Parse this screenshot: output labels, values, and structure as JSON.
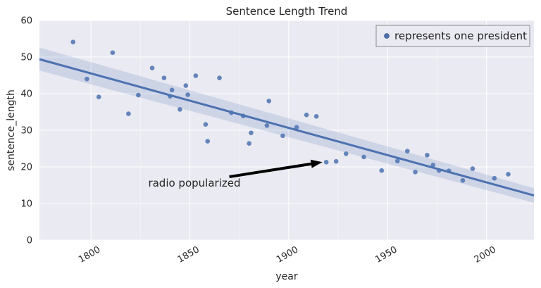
{
  "chart_data": {
    "type": "scatter",
    "title": "Sentence Length Trend",
    "xlabel": "year",
    "ylabel": "sentence_length",
    "xlim": [
      1774,
      2024
    ],
    "ylim": [
      0,
      60
    ],
    "xticks": [
      1800,
      1850,
      1900,
      1950,
      2000
    ],
    "yticks": [
      0,
      10,
      20,
      30,
      40,
      50,
      60
    ],
    "grid": true,
    "legend": {
      "placement": "top-right",
      "label": "represents one president"
    },
    "colors": {
      "point": "#4c72b0",
      "line": "#4c72b0",
      "band": "#4c72b0",
      "background": "#eaeaf2",
      "grid": "#ffffff"
    },
    "points": [
      {
        "x": 1791,
        "y": 54.1
      },
      {
        "x": 1798,
        "y": 44.0
      },
      {
        "x": 1804,
        "y": 39.1
      },
      {
        "x": 1811,
        "y": 51.2
      },
      {
        "x": 1819,
        "y": 34.5
      },
      {
        "x": 1824,
        "y": 39.6
      },
      {
        "x": 1831,
        "y": 47.0
      },
      {
        "x": 1837,
        "y": 44.3
      },
      {
        "x": 1840,
        "y": 39.3
      },
      {
        "x": 1841,
        "y": 41.0
      },
      {
        "x": 1845,
        "y": 35.7
      },
      {
        "x": 1848,
        "y": 42.2
      },
      {
        "x": 1849,
        "y": 39.7
      },
      {
        "x": 1853,
        "y": 44.9
      },
      {
        "x": 1858,
        "y": 31.6
      },
      {
        "x": 1859,
        "y": 27.0
      },
      {
        "x": 1865,
        "y": 44.3
      },
      {
        "x": 1871,
        "y": 34.8
      },
      {
        "x": 1877,
        "y": 33.9
      },
      {
        "x": 1880,
        "y": 26.4
      },
      {
        "x": 1881,
        "y": 29.3
      },
      {
        "x": 1889,
        "y": 31.3
      },
      {
        "x": 1890,
        "y": 38.0
      },
      {
        "x": 1897,
        "y": 28.5
      },
      {
        "x": 1904,
        "y": 30.8
      },
      {
        "x": 1909,
        "y": 34.2
      },
      {
        "x": 1914,
        "y": 33.8
      },
      {
        "x": 1919,
        "y": 21.3
      },
      {
        "x": 1924,
        "y": 21.5
      },
      {
        "x": 1929,
        "y": 23.6
      },
      {
        "x": 1938,
        "y": 22.7
      },
      {
        "x": 1947,
        "y": 19.0
      },
      {
        "x": 1955,
        "y": 21.6
      },
      {
        "x": 1960,
        "y": 24.3
      },
      {
        "x": 1964,
        "y": 18.6
      },
      {
        "x": 1970,
        "y": 23.2
      },
      {
        "x": 1973,
        "y": 20.5
      },
      {
        "x": 1976,
        "y": 19.0
      },
      {
        "x": 1981,
        "y": 18.9
      },
      {
        "x": 1988,
        "y": 16.3
      },
      {
        "x": 1993,
        "y": 19.5
      },
      {
        "x": 2004,
        "y": 16.9
      },
      {
        "x": 2011,
        "y": 18.0
      }
    ],
    "regression": {
      "x": [
        1774,
        2024
      ],
      "y": [
        49.4,
        12.2
      ],
      "band_upper": [
        52.6,
        14.2
      ],
      "band_lower": [
        46.3,
        10.2
      ]
    },
    "annotation": {
      "text": "radio popularized",
      "text_x": 1829,
      "text_y": 15,
      "arrow_from_x": 1870,
      "arrow_from_y": 17.3,
      "arrow_to_x": 1917,
      "arrow_to_y": 21.3
    }
  }
}
